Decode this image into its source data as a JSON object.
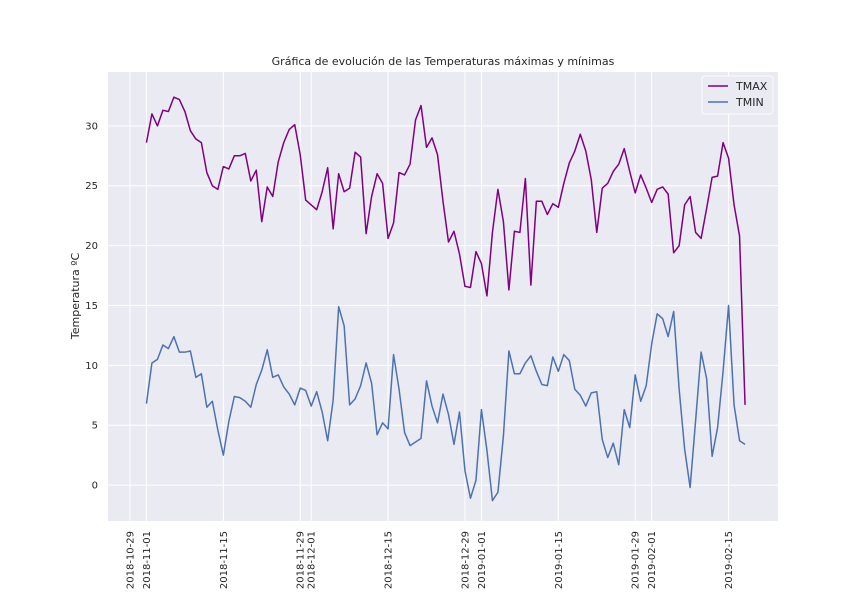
{
  "chart_data": {
    "type": "line",
    "title": "Gráfica de evolución de las Temperaturas máximas y mínimas",
    "xlabel": "",
    "ylabel": "Temperatura ºC",
    "xlim": [
      "2018-10-25",
      "2019-02-24"
    ],
    "ylim": [
      -3,
      34.5
    ],
    "yticks": [
      0,
      5,
      10,
      15,
      20,
      25,
      30
    ],
    "xticks": [
      "2018-10-29",
      "2018-11-01",
      "2018-11-15",
      "2018-11-29",
      "2018-12-01",
      "2018-12-15",
      "2018-12-29",
      "2019-01-01",
      "2019-01-15",
      "2019-01-29",
      "2019-02-01",
      "2019-02-15"
    ],
    "grid": true,
    "legend_position": "top-right",
    "start_date": "2018-11-01",
    "series": [
      {
        "name": "TMAX",
        "color": "#800080",
        "values": [
          28.6,
          31.0,
          30.0,
          31.3,
          31.2,
          32.4,
          32.2,
          31.2,
          29.6,
          28.9,
          28.6,
          26.1,
          25.0,
          24.7,
          26.6,
          26.4,
          27.5,
          27.5,
          27.7,
          25.4,
          26.3,
          22.0,
          24.9,
          24.1,
          27.0,
          28.6,
          29.7,
          30.1,
          27.6,
          23.8,
          23.4,
          23.0,
          24.5,
          26.5,
          21.4,
          26.0,
          24.5,
          24.8,
          27.8,
          27.4,
          21.0,
          24.1,
          26.0,
          25.2,
          20.6,
          21.9,
          26.1,
          25.9,
          26.8,
          30.5,
          31.7,
          28.2,
          29.0,
          27.6,
          23.7,
          20.3,
          21.2,
          19.3,
          16.6,
          16.5,
          19.5,
          18.5,
          15.8,
          21.1,
          24.7,
          22.0,
          16.3,
          21.2,
          21.1,
          25.6,
          16.7,
          23.7,
          23.7,
          22.6,
          23.5,
          23.2,
          25.2,
          26.9,
          27.9,
          29.3,
          27.9,
          25.5,
          21.1,
          24.8,
          25.2,
          26.2,
          26.8,
          28.1,
          26.2,
          24.4,
          25.9,
          24.8,
          23.6,
          24.7,
          24.9,
          24.3,
          19.4,
          20.0,
          23.4,
          24.1,
          21.1,
          20.6,
          23.1,
          25.7,
          25.8,
          28.6,
          27.3,
          23.4,
          20.8,
          6.7
        ]
      },
      {
        "name": "TMIN",
        "color": "#4c72b0",
        "values": [
          6.8,
          10.2,
          10.5,
          11.7,
          11.4,
          12.4,
          11.1,
          11.1,
          11.2,
          9.0,
          9.3,
          6.5,
          7.0,
          4.6,
          2.5,
          5.3,
          7.4,
          7.3,
          7.0,
          6.5,
          8.4,
          9.6,
          11.3,
          9.0,
          9.2,
          8.2,
          7.6,
          6.7,
          8.1,
          7.9,
          6.6,
          7.8,
          6.1,
          3.7,
          7.1,
          14.9,
          13.3,
          6.7,
          7.2,
          8.3,
          10.2,
          8.5,
          4.2,
          5.2,
          4.7,
          10.9,
          8.0,
          4.4,
          3.3,
          3.6,
          3.9,
          8.7,
          6.6,
          5.2,
          7.6,
          5.9,
          3.4,
          6.1,
          1.2,
          -1.1,
          0.4,
          6.3,
          2.9,
          -1.3,
          -0.6,
          4.1,
          11.2,
          9.3,
          9.3,
          10.2,
          10.8,
          9.5,
          8.4,
          8.3,
          10.7,
          9.5,
          10.9,
          10.4,
          8.0,
          7.5,
          6.6,
          7.7,
          7.8,
          3.8,
          2.3,
          3.5,
          1.7,
          6.3,
          4.8,
          9.2,
          7.0,
          8.3,
          11.8,
          14.3,
          13.9,
          12.4,
          14.5,
          8.0,
          3.0,
          -0.2,
          5.4,
          11.1,
          8.9,
          2.4,
          4.8,
          9.5,
          15.0,
          6.7,
          3.7,
          3.4
        ]
      }
    ]
  }
}
